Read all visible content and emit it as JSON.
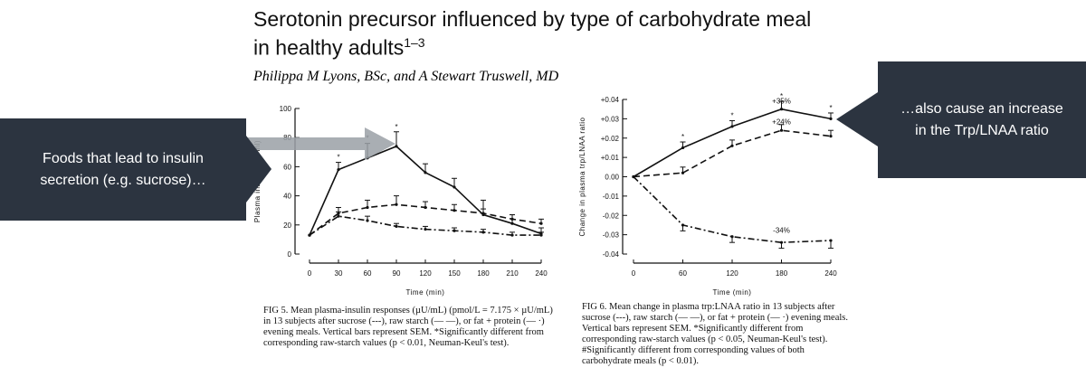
{
  "title": {
    "main": "Serotonin precursor influenced by type of carbohydrate meal",
    "line2": "in healthy adults",
    "superscript": "1–3"
  },
  "authors": "Philippa M Lyons, BSc, and A Stewart Truswell, MD",
  "callouts": {
    "left": [
      "Foods that lead to insulin",
      "secretion (e.g. sucrose)…"
    ],
    "right": [
      "…also cause an increase",
      "in the Trp/LNAA ratio"
    ]
  },
  "colors": {
    "callout_bg": "#2c3440",
    "callout_text": "#ffffff",
    "arrow": "#9aa0a6"
  },
  "captions": {
    "fig5": "FIG 5. Mean plasma-insulin responses (µU/mL) (pmol/L = 7.175 × µU/mL) in 13 subjects after sucrose (---), raw starch (— —), or fat + protein (— ·) evening meals. Vertical bars represent SEM. *Significantly different from corresponding raw-starch values (p < 0.01, Neuman-Keul's test).",
    "fig6": "FIG 6. Mean change in plasma trp:LNAA ratio in 13 subjects after sucrose (---), raw starch (— —), or fat + protein (— ·) evening meals. Vertical bars represent SEM. *Significantly different from corresponding raw-starch values (p < 0.05, Neuman-Keul's test). #Significantly different from corresponding values of both carbohydrate meals (p < 0.01)."
  },
  "chart_data": [
    {
      "type": "line",
      "title": "",
      "xlabel": "Time (min)",
      "ylabel": "Plasma insulin (µU/ml)",
      "xlim": [
        0,
        240
      ],
      "ylim": [
        0,
        100
      ],
      "xticks": [
        "0",
        "30",
        "60",
        "90",
        "120",
        "150",
        "180",
        "210",
        "240"
      ],
      "yticks": [
        "0",
        "20",
        "40",
        "60",
        "80",
        "100"
      ],
      "x": [
        0,
        30,
        60,
        90,
        120,
        150,
        180,
        210,
        240
      ],
      "series": [
        {
          "style": "solid",
          "values": [
            13,
            58,
            66,
            74,
            56,
            46,
            27,
            21,
            14
          ],
          "err": [
            0,
            5,
            10,
            10,
            6,
            6,
            10,
            6,
            4
          ]
        },
        {
          "style": "dashed",
          "values": [
            13,
            28,
            32,
            34,
            32,
            30,
            28,
            24,
            21
          ],
          "err": [
            0,
            4,
            5,
            6,
            4,
            4,
            3,
            3,
            3
          ]
        },
        {
          "style": "dashdot",
          "values": [
            13,
            26,
            23,
            19,
            17,
            16,
            15,
            13,
            13
          ],
          "err": [
            0,
            3,
            3,
            2,
            2,
            2,
            2,
            2,
            2
          ]
        }
      ],
      "significance_marks": [
        "*"
      ],
      "grid": false
    },
    {
      "type": "line",
      "title": "",
      "xlabel": "Time (min)",
      "ylabel": "Change in plasma trp/LNAA ratio",
      "xlim": [
        0,
        240
      ],
      "ylim": [
        -0.04,
        0.04
      ],
      "xticks": [
        "0",
        "60",
        "120",
        "180",
        "240"
      ],
      "yticks": [
        "+0.04",
        "+0.03",
        "+0.02",
        "+0.01",
        "0.00",
        "-0.01",
        "-0.02",
        "-0.03",
        "-0.04"
      ],
      "x": [
        0,
        60,
        120,
        180,
        240
      ],
      "series": [
        {
          "style": "solid",
          "values": [
            0,
            0.015,
            0.026,
            0.035,
            0.03
          ],
          "err": [
            0,
            0.003,
            0.003,
            0.004,
            0.003
          ]
        },
        {
          "style": "dashed",
          "values": [
            0,
            0.002,
            0.016,
            0.024,
            0.021
          ],
          "err": [
            0,
            0.003,
            0.003,
            0.003,
            0.003
          ]
        },
        {
          "style": "dashdot",
          "values": [
            0,
            -0.025,
            -0.031,
            -0.034,
            -0.033
          ],
          "err": [
            0,
            0.003,
            0.003,
            0.003,
            0.004
          ]
        }
      ],
      "annotations": [
        "+35%",
        "+24%",
        "-34%"
      ],
      "significance_marks": [
        "*",
        "#"
      ],
      "grid": false
    }
  ]
}
